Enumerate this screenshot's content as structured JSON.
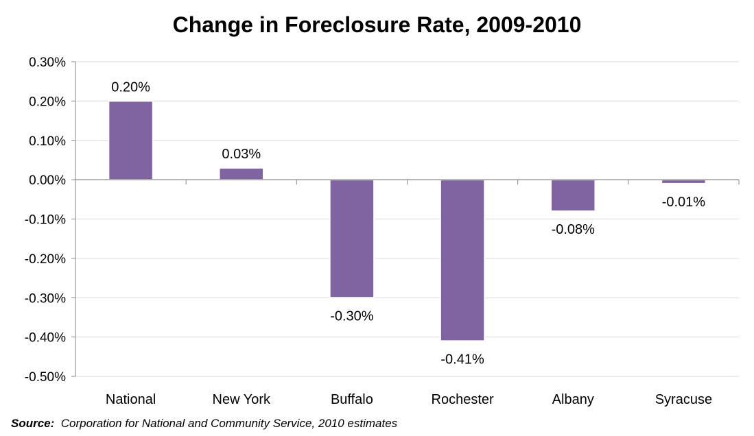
{
  "chart_data": {
    "type": "bar",
    "title": "Change in Foreclosure Rate, 2009-2010",
    "xlabel": "",
    "ylabel": "",
    "categories": [
      "National",
      "New York",
      "Buffalo",
      "Rochester",
      "Albany",
      "Syracuse"
    ],
    "values": [
      0.2,
      0.03,
      -0.3,
      -0.41,
      -0.08,
      -0.01
    ],
    "data_labels": [
      "0.20%",
      "0.03%",
      "-0.30%",
      "-0.41%",
      "-0.08%",
      "-0.01%"
    ],
    "ylim": [
      -0.5,
      0.3
    ],
    "yticks": [
      0.3,
      0.2,
      0.1,
      0.0,
      -0.1,
      -0.2,
      -0.3,
      -0.4,
      -0.5
    ],
    "ytick_labels": [
      "0.30%",
      "0.20%",
      "0.10%",
      "0.00%",
      "-0.10%",
      "-0.20%",
      "-0.30%",
      "-0.40%",
      "-0.50%"
    ],
    "grid": true,
    "legend": "none",
    "bar_color": "#8064a2",
    "grid_color": "#d9d9d9",
    "axis_color": "#868686"
  },
  "source": {
    "label": "Source:",
    "text": "Corporation for National and Community Service, 2010 estimates"
  }
}
